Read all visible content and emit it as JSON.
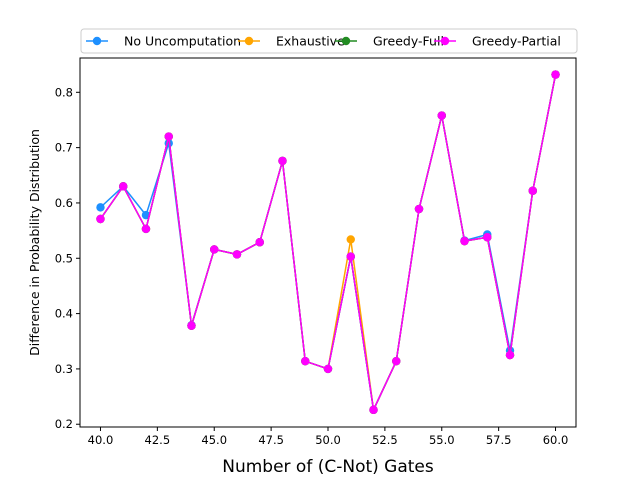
{
  "chart_data": {
    "type": "line",
    "title": "",
    "xlabel": "Number of (C-Not) Gates",
    "ylabel": "Difference in Probability Distribution",
    "xlim": [
      39.1,
      60.9
    ],
    "ylim": [
      0.195,
      0.862
    ],
    "xticks": [
      40.0,
      42.5,
      45.0,
      47.5,
      50.0,
      52.5,
      55.0,
      57.5,
      60.0
    ],
    "xtick_labels": [
      "40.0",
      "42.5",
      "45.0",
      "47.5",
      "50.0",
      "52.5",
      "55.0",
      "57.5",
      "60.0"
    ],
    "yticks": [
      0.2,
      0.3,
      0.4,
      0.5,
      0.6,
      0.7,
      0.8
    ],
    "ytick_labels": [
      "0.2",
      "0.3",
      "0.4",
      "0.5",
      "0.6",
      "0.7",
      "0.8"
    ],
    "grid": false,
    "legend_position": "top-center",
    "x": [
      40,
      41,
      42,
      43,
      44,
      45,
      46,
      47,
      48,
      49,
      50,
      51,
      52,
      53,
      54,
      55,
      56,
      57,
      58,
      59,
      60
    ],
    "series": [
      {
        "name": "No Uncomputation",
        "color": "#1e90ff",
        "values": [
          0.592,
          0.63,
          0.578,
          0.708,
          0.379,
          0.516,
          0.507,
          0.529,
          0.676,
          0.314,
          0.3,
          0.503,
          0.226,
          0.314,
          0.589,
          0.758,
          0.532,
          0.543,
          0.333,
          0.622,
          0.832
        ]
      },
      {
        "name": "Exhaustive",
        "color": "#ffa500",
        "values": [
          0.571,
          0.63,
          0.553,
          0.72,
          0.378,
          0.516,
          0.507,
          0.529,
          0.676,
          0.314,
          0.3,
          0.534,
          0.226,
          0.314,
          0.589,
          0.758,
          0.531,
          0.538,
          0.325,
          0.622,
          0.832
        ]
      },
      {
        "name": "Greedy-Full",
        "color": "#228b22",
        "values": [
          0.571,
          0.63,
          0.553,
          0.72,
          0.378,
          0.516,
          0.507,
          0.529,
          0.676,
          0.314,
          0.3,
          0.503,
          0.226,
          0.314,
          0.589,
          0.758,
          0.531,
          0.538,
          0.325,
          0.622,
          0.832
        ]
      },
      {
        "name": "Greedy-Partial",
        "color": "#ff00ff",
        "values": [
          0.571,
          0.63,
          0.553,
          0.72,
          0.378,
          0.516,
          0.507,
          0.529,
          0.676,
          0.314,
          0.3,
          0.503,
          0.226,
          0.314,
          0.589,
          0.758,
          0.531,
          0.538,
          0.325,
          0.622,
          0.832
        ]
      }
    ]
  }
}
